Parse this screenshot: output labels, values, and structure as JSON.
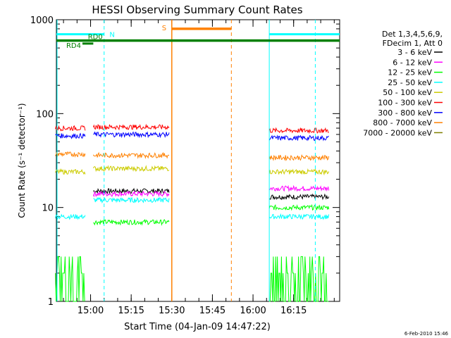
{
  "chart_data": {
    "type": "line",
    "title": "HESSI Observing Summary Count Rates",
    "xlabel": "Start Time (04-Jan-09 14:47:22)",
    "ylabel": "Count Rate (s⁻¹ detector⁻¹)",
    "yscale": "log",
    "ylim": [
      1,
      1000
    ],
    "xlim": [
      "14:47:22",
      "16:32:00"
    ],
    "x_ticks": [
      "15:00",
      "15:15",
      "15:30",
      "15:45",
      "16:00",
      "16:15"
    ],
    "y_ticks": [
      "1",
      "10",
      "100",
      "1000"
    ],
    "legend_header": [
      "Det 1,3,4,5,6,9,",
      "FDecim 1, Att 0"
    ],
    "series": [
      {
        "name": "3 - 6 keV",
        "color": "#000000",
        "level": [
          null,
          15,
          null,
          null,
          13
        ]
      },
      {
        "name": "6 - 12 keV",
        "color": "#ff00ff",
        "level": [
          null,
          14,
          null,
          null,
          16
        ]
      },
      {
        "name": "12 - 25 keV",
        "color": "#00ff00",
        "level": [
          null,
          7,
          null,
          null,
          10
        ]
      },
      {
        "name": "25 - 50 keV",
        "color": "#00ffff",
        "level": [
          8,
          12,
          null,
          null,
          8
        ]
      },
      {
        "name": "50 - 100 keV",
        "color": "#cccc00",
        "level": [
          24,
          26,
          null,
          null,
          24
        ]
      },
      {
        "name": "100 - 300 keV",
        "color": "#ff0000",
        "level": [
          70,
          72,
          null,
          null,
          66
        ]
      },
      {
        "name": "300 - 800 keV",
        "color": "#0000ff",
        "level": [
          58,
          60,
          null,
          null,
          55
        ]
      },
      {
        "name": "800 - 7000 keV",
        "color": "#ff8000",
        "level": [
          37,
          36,
          null,
          null,
          34
        ]
      },
      {
        "name": "7000 - 20000 keV",
        "color": "#808000",
        "level": [
          null,
          null,
          null,
          null,
          null
        ]
      }
    ],
    "segments": [
      "14:47-14:58",
      "15:01-15:29",
      "15:30-15:52",
      "15:53-16:06",
      "16:06-16:28"
    ],
    "flags": [
      {
        "label": "N",
        "color": "#00ffff",
        "value": 700
      },
      {
        "label": "RD0",
        "color": "#008000",
        "value": 600
      },
      {
        "label": "RD4",
        "color": "#008000",
        "value": 520
      },
      {
        "label": "S",
        "color": "#ff8000",
        "value": 800
      }
    ],
    "grid": false,
    "legend": "right"
  },
  "footer_date": "6-Feb-2010 15:46"
}
